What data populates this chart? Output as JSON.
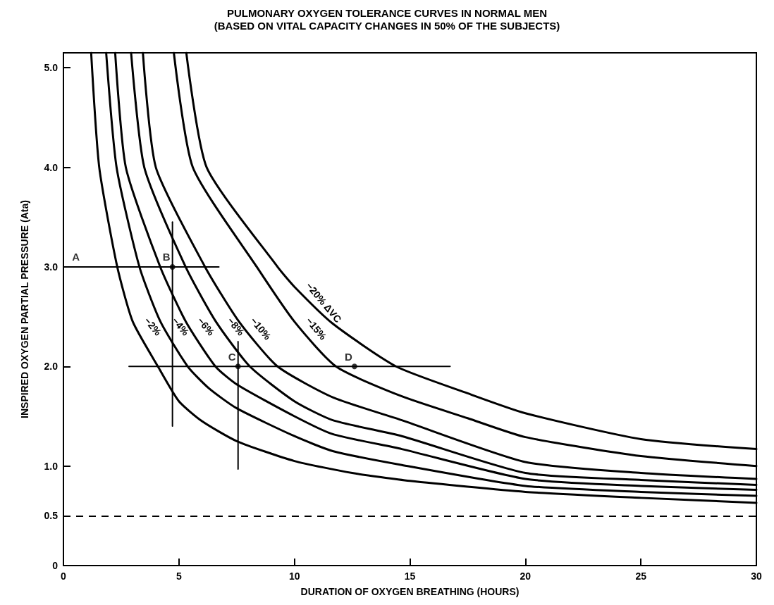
{
  "chart_data": {
    "type": "line",
    "title": "PULMONARY OXYGEN TOLERANCE CURVES IN NORMAL MEN",
    "subtitle": "(BASED ON VITAL CAPACITY CHANGES IN 50% OF THE SUBJECTS)",
    "xlabel": "DURATION OF OXYGEN BREATHING (HOURS)",
    "ylabel": "INSPIRED OXYGEN PARTIAL PRESSURE (Ata)",
    "xlim": [
      0,
      30
    ],
    "xticks": [
      0,
      5,
      10,
      15,
      20,
      25,
      30
    ],
    "ylim": [
      0,
      5.15
    ],
    "yticks": [
      0,
      0.5,
      {
        "value": 1,
        "label": "1.0"
      },
      {
        "value": 2,
        "label": "2.0"
      },
      {
        "value": 3,
        "label": "3.0"
      },
      {
        "value": 4,
        "label": "4.0"
      },
      {
        "value": 5,
        "label": "5.0"
      }
    ],
    "grid": false,
    "legend": false,
    "marker": "none",
    "line_style": "solid",
    "series": [
      {
        "name": "−2%",
        "color": "#000000",
        "x": [
          1.2,
          1.55,
          2.33,
          3,
          4.09,
          5,
          6,
          7.5,
          10,
          12.5,
          15,
          20,
          25,
          30
        ],
        "values": [
          5.15,
          4.0,
          3.0,
          2.45,
          2.0,
          1.65,
          1.45,
          1.25,
          1.05,
          0.93,
          0.85,
          0.74,
          0.68,
          0.63
        ]
      },
      {
        "name": "−4%",
        "color": "#000000",
        "x": [
          1.85,
          2.3,
          3.29,
          4.2,
          5.38,
          6.3,
          7.5,
          10,
          11.66,
          14.65,
          20,
          25,
          30
        ],
        "values": [
          5.15,
          4.0,
          3.0,
          2.45,
          2.0,
          1.78,
          1.58,
          1.3,
          1.15,
          1.01,
          0.8,
          0.74,
          0.7
        ]
      },
      {
        "name": "−6%",
        "color": "#000000",
        "x": [
          2.24,
          2.7,
          4.19,
          5.3,
          6.58,
          7.5,
          10,
          11.66,
          14.65,
          20,
          25,
          30
        ],
        "values": [
          5.15,
          4.0,
          3.0,
          2.45,
          2.0,
          1.82,
          1.5,
          1.32,
          1.17,
          0.87,
          0.8,
          0.76
        ]
      },
      {
        "name": "−8%",
        "color": "#000000",
        "x": [
          2.93,
          3.5,
          5.29,
          6.6,
          8.07,
          10,
          11.66,
          14.65,
          20,
          25,
          30
        ],
        "values": [
          5.15,
          4.0,
          3.0,
          2.45,
          2.0,
          1.65,
          1.46,
          1.3,
          0.93,
          0.86,
          0.81
        ]
      },
      {
        "name": "−10%",
        "color": "#000000",
        "x": [
          3.44,
          4.0,
          6.13,
          7.6,
          9.27,
          11.66,
          14.65,
          20,
          25,
          30
        ],
        "values": [
          5.15,
          4.0,
          3.0,
          2.45,
          2.0,
          1.69,
          1.46,
          1.04,
          0.93,
          0.87
        ]
      },
      {
        "name": "−15%",
        "color": "#000000",
        "x": [
          4.78,
          5.6,
          8.37,
          10,
          11.8,
          14.65,
          17.5,
          20,
          25,
          30
        ],
        "values": [
          5.15,
          4.0,
          3.0,
          2.45,
          2.0,
          1.7,
          1.48,
          1.29,
          1.1,
          1.0
        ]
      },
      {
        "name": "−20% ΔVC",
        "color": "#000000",
        "x": [
          5.32,
          6.2,
          9.27,
          10,
          11.66,
          14.4,
          17.5,
          20,
          25,
          30
        ],
        "values": [
          5.15,
          4.0,
          3.0,
          2.8,
          2.43,
          2.0,
          1.73,
          1.53,
          1.27,
          1.17
        ]
      },
      {
        "color": "#000000",
        "x": [
          0,
          6.73
        ],
        "values": [
          3.0,
          3.0
        ]
      },
      {
        "color": "#000000",
        "x": [
          4.72,
          4.72
        ],
        "values": [
          1.4,
          3.45
        ]
      },
      {
        "color": "#000000",
        "x": [
          2.84,
          16.74
        ],
        "values": [
          2.0,
          2.0
        ]
      },
      {
        "color": "#000000",
        "x": [
          7.56,
          7.56
        ],
        "values": [
          0.97,
          2.25
        ]
      },
      {
        "type": "scatter",
        "marker": "circle",
        "color": "#000000",
        "x": [
          4.72,
          7.56,
          12.6
        ],
        "values": [
          3.0,
          2.0,
          2.0
        ]
      }
    ],
    "ref_lines": [
      {
        "axis": "y",
        "value": 0.5,
        "color": "#000000",
        "line_style": "dashed"
      }
    ],
    "annotations": [
      {
        "text": "A",
        "x": 0.8,
        "y": 3.0
      },
      {
        "text": "B",
        "x": 4.72,
        "y": 3.0
      },
      {
        "text": "C",
        "x": 7.56,
        "y": 2.0
      },
      {
        "text": "D",
        "x": 12.6,
        "y": 2.0
      }
    ]
  }
}
